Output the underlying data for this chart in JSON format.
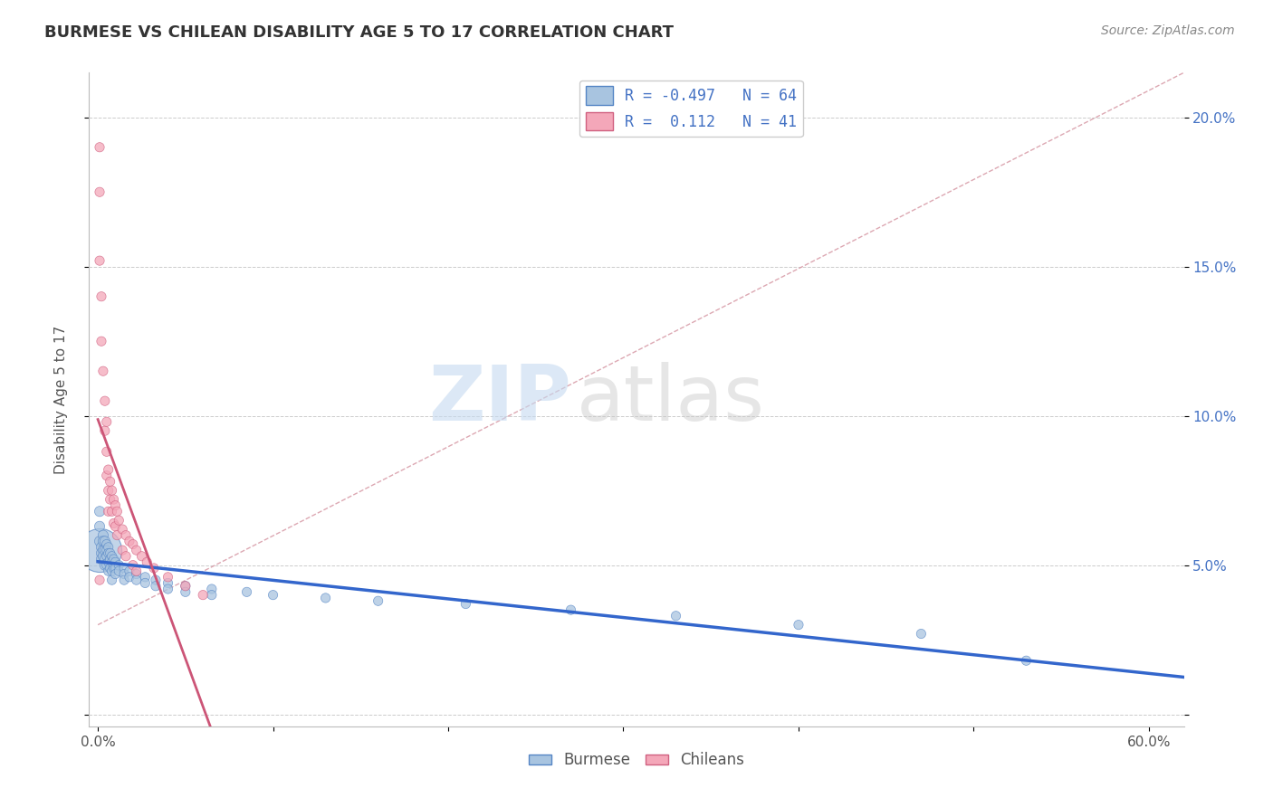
{
  "title": "BURMESE VS CHILEAN DISABILITY AGE 5 TO 17 CORRELATION CHART",
  "source": "Source: ZipAtlas.com",
  "ylabel_label": "Disability Age 5 to 17",
  "x_ticks": [
    0.0,
    0.1,
    0.2,
    0.3,
    0.4,
    0.5,
    0.6
  ],
  "x_tick_labels": [
    "0.0%",
    "",
    "",
    "",
    "",
    "",
    "60.0%"
  ],
  "y_ticks": [
    0.0,
    0.05,
    0.1,
    0.15,
    0.2
  ],
  "y_tick_labels_left": [
    "",
    "",
    "",
    "",
    ""
  ],
  "y_tick_labels_right": [
    "",
    "5.0%",
    "10.0%",
    "15.0%",
    "20.0%"
  ],
  "xlim": [
    -0.005,
    0.62
  ],
  "ylim": [
    -0.004,
    0.215
  ],
  "burmese_color": "#a8c4e0",
  "chilean_color": "#f4a7b9",
  "burmese_edge_color": "#5585c5",
  "chilean_edge_color": "#d06080",
  "burmese_line_color": "#3366cc",
  "chilean_line_color": "#cc5577",
  "diag_line_color": "#d4929f",
  "R_burmese": -0.497,
  "N_burmese": 64,
  "R_chilean": 0.112,
  "N_chilean": 41,
  "burmese_points": [
    [
      0.001,
      0.068
    ],
    [
      0.001,
      0.063
    ],
    [
      0.001,
      0.058
    ],
    [
      0.002,
      0.056
    ],
    [
      0.002,
      0.054
    ],
    [
      0.002,
      0.052
    ],
    [
      0.003,
      0.06
    ],
    [
      0.003,
      0.058
    ],
    [
      0.003,
      0.055
    ],
    [
      0.003,
      0.053
    ],
    [
      0.004,
      0.058
    ],
    [
      0.004,
      0.055
    ],
    [
      0.004,
      0.052
    ],
    [
      0.004,
      0.05
    ],
    [
      0.005,
      0.057
    ],
    [
      0.005,
      0.055
    ],
    [
      0.005,
      0.053
    ],
    [
      0.005,
      0.05
    ],
    [
      0.006,
      0.056
    ],
    [
      0.006,
      0.054
    ],
    [
      0.006,
      0.051
    ],
    [
      0.006,
      0.048
    ],
    [
      0.007,
      0.054
    ],
    [
      0.007,
      0.052
    ],
    [
      0.007,
      0.049
    ],
    [
      0.008,
      0.053
    ],
    [
      0.008,
      0.051
    ],
    [
      0.008,
      0.048
    ],
    [
      0.008,
      0.045
    ],
    [
      0.009,
      0.052
    ],
    [
      0.009,
      0.049
    ],
    [
      0.01,
      0.051
    ],
    [
      0.01,
      0.049
    ],
    [
      0.01,
      0.047
    ],
    [
      0.012,
      0.05
    ],
    [
      0.012,
      0.048
    ],
    [
      0.015,
      0.049
    ],
    [
      0.015,
      0.047
    ],
    [
      0.015,
      0.045
    ],
    [
      0.018,
      0.048
    ],
    [
      0.018,
      0.046
    ],
    [
      0.022,
      0.047
    ],
    [
      0.022,
      0.045
    ],
    [
      0.027,
      0.046
    ],
    [
      0.027,
      0.044
    ],
    [
      0.033,
      0.045
    ],
    [
      0.033,
      0.043
    ],
    [
      0.04,
      0.044
    ],
    [
      0.04,
      0.042
    ],
    [
      0.05,
      0.043
    ],
    [
      0.05,
      0.041
    ],
    [
      0.065,
      0.042
    ],
    [
      0.065,
      0.04
    ],
    [
      0.085,
      0.041
    ],
    [
      0.1,
      0.04
    ],
    [
      0.13,
      0.039
    ],
    [
      0.16,
      0.038
    ],
    [
      0.21,
      0.037
    ],
    [
      0.27,
      0.035
    ],
    [
      0.33,
      0.033
    ],
    [
      0.4,
      0.03
    ],
    [
      0.47,
      0.027
    ],
    [
      0.53,
      0.018
    ]
  ],
  "chilean_points": [
    [
      0.001,
      0.19
    ],
    [
      0.001,
      0.175
    ],
    [
      0.001,
      0.152
    ],
    [
      0.002,
      0.14
    ],
    [
      0.002,
      0.125
    ],
    [
      0.003,
      0.115
    ],
    [
      0.004,
      0.105
    ],
    [
      0.004,
      0.095
    ],
    [
      0.005,
      0.098
    ],
    [
      0.005,
      0.088
    ],
    [
      0.005,
      0.08
    ],
    [
      0.006,
      0.082
    ],
    [
      0.006,
      0.075
    ],
    [
      0.006,
      0.068
    ],
    [
      0.007,
      0.078
    ],
    [
      0.007,
      0.072
    ],
    [
      0.008,
      0.075
    ],
    [
      0.008,
      0.068
    ],
    [
      0.009,
      0.072
    ],
    [
      0.009,
      0.064
    ],
    [
      0.01,
      0.07
    ],
    [
      0.01,
      0.063
    ],
    [
      0.011,
      0.068
    ],
    [
      0.011,
      0.06
    ],
    [
      0.012,
      0.065
    ],
    [
      0.014,
      0.062
    ],
    [
      0.014,
      0.055
    ],
    [
      0.016,
      0.06
    ],
    [
      0.016,
      0.053
    ],
    [
      0.018,
      0.058
    ],
    [
      0.02,
      0.057
    ],
    [
      0.02,
      0.05
    ],
    [
      0.022,
      0.055
    ],
    [
      0.022,
      0.048
    ],
    [
      0.025,
      0.053
    ],
    [
      0.028,
      0.051
    ],
    [
      0.032,
      0.049
    ],
    [
      0.04,
      0.046
    ],
    [
      0.05,
      0.043
    ],
    [
      0.06,
      0.04
    ],
    [
      0.001,
      0.045
    ]
  ],
  "big_burmese_point": [
    0.001,
    0.055
  ],
  "watermark_zip_color": "#c5daf0",
  "watermark_atlas_color": "#c8c8c8",
  "background_color": "#ffffff",
  "grid_color": "#cccccc"
}
